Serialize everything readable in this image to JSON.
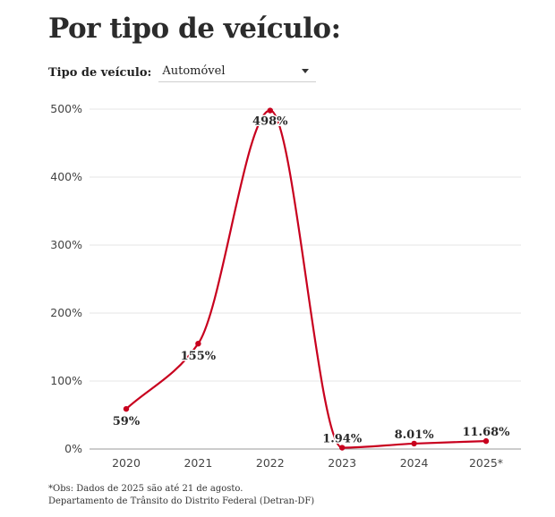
{
  "title": "Por tipo de veículo:",
  "filter": {
    "label": "Tipo de veículo:",
    "selected": "Automóvel"
  },
  "footnote": {
    "line1": "*Obs: Dados de 2025 são até 21 de agosto.",
    "line2": "Departamento de Trânsito do Distrito Federal (Detran-DF)"
  },
  "colors": {
    "line": "#c8001e",
    "grid": "#e6e6e6"
  },
  "chart_data": {
    "type": "line",
    "categories": [
      "2020",
      "2021",
      "2022",
      "2023",
      "2024",
      "2025*"
    ],
    "values": [
      59,
      155,
      498,
      1.94,
      8.01,
      11.68
    ],
    "data_labels": [
      "59%",
      "155%",
      "498%",
      "1.94%",
      "8.01%",
      "11.68%"
    ],
    "y_ticks": [
      0,
      100,
      200,
      300,
      400,
      500
    ],
    "y_tick_labels": [
      "0%",
      "100%",
      "200%",
      "300%",
      "400%",
      "500%"
    ],
    "ylim": [
      0,
      500
    ],
    "grid": true,
    "smooth": true
  }
}
